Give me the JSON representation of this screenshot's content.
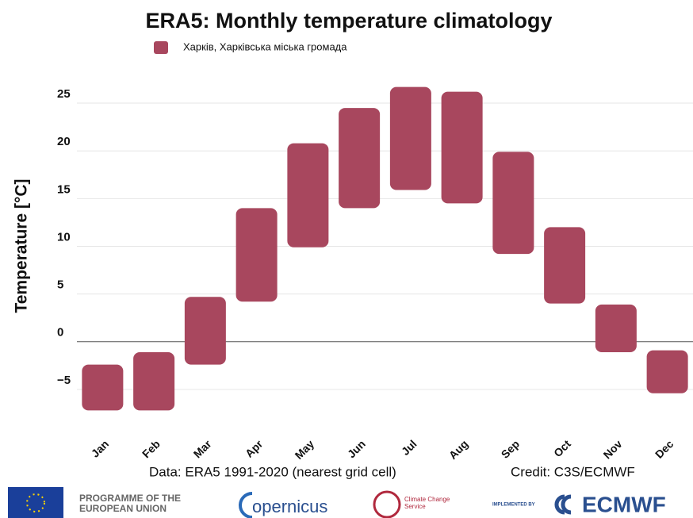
{
  "chart_data": {
    "type": "floating_bar",
    "title": "ERA5: Monthly temperature climatology",
    "ylabel": "Temperature [°C]",
    "categories": [
      "Jan",
      "Feb",
      "Mar",
      "Apr",
      "May",
      "Jun",
      "Jul",
      "Aug",
      "Sep",
      "Oct",
      "Nov",
      "Dec"
    ],
    "series": [
      {
        "name": "Харків, Харківська міська громада",
        "color": "#a8475e",
        "low": [
          -7.2,
          -7.2,
          -2.4,
          4.2,
          9.9,
          14.0,
          15.9,
          14.5,
          9.2,
          4.0,
          -1.1,
          -5.4
        ],
        "high": [
          -2.4,
          -1.1,
          4.7,
          14.0,
          20.8,
          24.5,
          26.7,
          26.2,
          19.9,
          12.0,
          3.9,
          -0.9
        ]
      }
    ],
    "ylim": [
      -8,
      27
    ],
    "yticks": [
      {
        "value": -5,
        "label": "−5"
      },
      0,
      5,
      10,
      15,
      20,
      25
    ],
    "grid": true,
    "legend": "top",
    "footer": {
      "source": "Data: ERA5 1991-2020 (nearest grid cell)",
      "credit": "Credit: C3S/ECMWF"
    },
    "logos": {
      "eu": "PROGRAMME OF THE EUROPEAN UNION",
      "copernicus": "opernicus",
      "service": "Climate Change Service",
      "implemented": "IMPLEMENTED BY",
      "ecmwf": "ECMWF"
    }
  }
}
